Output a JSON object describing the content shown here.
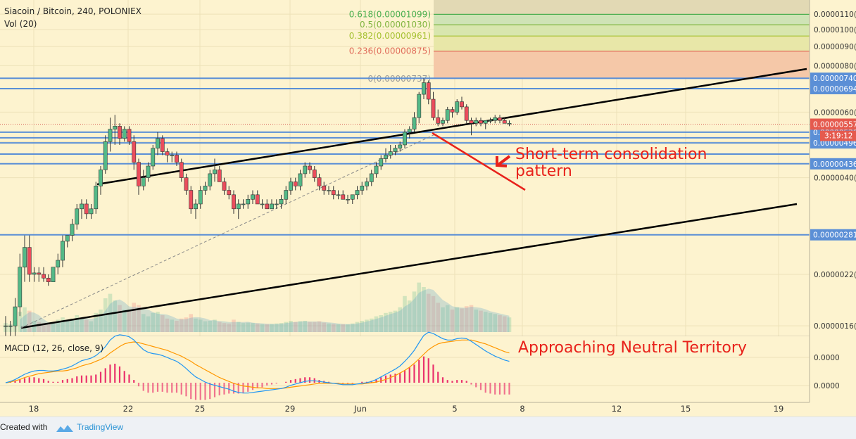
{
  "header": {
    "symbol": "Siacoin / Bitcoin, 240, POLONIEX",
    "volume_label": "Vol (20)",
    "macd_label": "MACD (12, 26, close, 9)"
  },
  "annotations": {
    "consolidation_line1": "Short-term consolidation",
    "consolidation_line2": "pattern",
    "macd_note": "Approaching Neutral Territory"
  },
  "footer": {
    "created_with": "Created with",
    "brand": "TradingView"
  },
  "colors": {
    "background": "#fdf3cf",
    "up_candle": "#53b987",
    "down_candle": "#eb4d5c",
    "support_line": "#5b8fd6",
    "trend_line": "#000000",
    "consolidation": "#e8211a",
    "macd_line": "#2196f3",
    "signal_line": "#ff9800",
    "histogram": "#e91e63",
    "price_label": "#e55a4e"
  },
  "chart_data": {
    "type": "candlestick",
    "pair": "Siacoin / Bitcoin",
    "interval_minutes": 240,
    "exchange": "POLONIEX",
    "x_ticks": [
      "18",
      "22",
      "25",
      "29",
      "Jun",
      "5",
      "8",
      "12",
      "15",
      "19"
    ],
    "y_tick_labels": [
      "0.0000110(",
      "0.0000100(",
      "0.0000090(",
      "0.0000080(",
      "0.0000060(",
      "0.0000050(",
      "0.0000040(",
      "0.0000022(",
      "0.0000016("
    ],
    "y_tick_values": [
      1.1e-05,
      1e-05,
      9e-06,
      8e-06,
      6e-06,
      5e-06,
      4e-06,
      2.2e-06,
      1.6e-06
    ],
    "y_scale": "log",
    "ylim": [
      1.5e-06,
      1.18e-05
    ],
    "current_price": {
      "label": "0.00000557",
      "value": 5.57e-06,
      "countdown": "3:19:12"
    },
    "fibonacci_levels": [
      {
        "label": "0.618(0.00001099)",
        "value": 1.099e-05,
        "color": "#4caf50"
      },
      {
        "label": "0.5(0.00001030)",
        "value": 1.03e-05,
        "color": "#81b540"
      },
      {
        "label": "0.382(0.00000961)",
        "value": 9.61e-06,
        "color": "#a5c130"
      },
      {
        "label": "0.236(0.00000875)",
        "value": 8.75e-06,
        "color": "#e06c5a"
      },
      {
        "label": "0(0.00000737)",
        "value": 7.37e-06,
        "color": "#999999"
      }
    ],
    "support_resistance": [
      {
        "label": "0.00000740",
        "value": 7.4e-06
      },
      {
        "label": "0.00000694",
        "value": 6.94e-06
      },
      {
        "label": "0.00000530",
        "value": 5.3e-06
      },
      {
        "label": "0.00000496",
        "value": 4.96e-06
      },
      {
        "label": "0.00000436",
        "value": 4.36e-06
      },
      {
        "label": "0.00000281",
        "value": 2.81e-06
      }
    ],
    "unlabeled_levels": [
      5.12e-06,
      4.63e-06
    ],
    "candles": [
      [
        1.6e-06,
        1.7e-06,
        1.5e-06,
        1.6e-06,
        40
      ],
      [
        1.6e-06,
        1.65e-06,
        1.5e-06,
        1.6e-06,
        35
      ],
      [
        1.6e-06,
        1.9e-06,
        1.5e-06,
        1.8e-06,
        60
      ],
      [
        1.8e-06,
        2.5e-06,
        1.7e-06,
        2.3e-06,
        90
      ],
      [
        2.3e-06,
        2.8e-06,
        2.1e-06,
        2.6e-06,
        110
      ],
      [
        2.6e-06,
        2.8e-06,
        2.1e-06,
        2.2e-06,
        95
      ],
      [
        2.2e-06,
        2.3e-06,
        2.1e-06,
        2.22e-06,
        50
      ],
      [
        2.22e-06,
        2.3e-06,
        2.1e-06,
        2.2e-06,
        45
      ],
      [
        2.2e-06,
        2.3e-06,
        2.1e-06,
        2.15e-06,
        40
      ],
      [
        2.15e-06,
        2.2e-06,
        2.05e-06,
        2.1e-06,
        38
      ],
      [
        2.1e-06,
        2.3e-06,
        2.1e-06,
        2.3e-06,
        42
      ],
      [
        2.3e-06,
        2.5e-06,
        2.2e-06,
        2.4e-06,
        55
      ],
      [
        2.4e-06,
        2.8e-06,
        2.3e-06,
        2.7e-06,
        65
      ],
      [
        2.7e-06,
        2.8e-06,
        2.6e-06,
        2.8e-06,
        50
      ],
      [
        2.8e-06,
        3.1e-06,
        2.7e-06,
        3e-06,
        60
      ],
      [
        3e-06,
        3.4e-06,
        2.9e-06,
        3.3e-06,
        75
      ],
      [
        3.3e-06,
        3.5e-06,
        3.1e-06,
        3.4e-06,
        60
      ],
      [
        3.4e-06,
        3.5e-06,
        3.1e-06,
        3.2e-06,
        55
      ],
      [
        3.2e-06,
        3.4e-06,
        3.1e-06,
        3.3e-06,
        48
      ],
      [
        3.3e-06,
        3.9e-06,
        3.2e-06,
        3.8e-06,
        85
      ],
      [
        3.8e-06,
        4.3e-06,
        3.6e-06,
        4.2e-06,
        100
      ],
      [
        4.2e-06,
        5.2e-06,
        4.1e-06,
        5e-06,
        150
      ],
      [
        5e-06,
        5.8e-06,
        4.7e-06,
        5.4e-06,
        170
      ],
      [
        5.4e-06,
        5.9e-06,
        4.9e-06,
        5.5e-06,
        140
      ],
      [
        5.5e-06,
        5.6e-06,
        4.9e-06,
        5.1e-06,
        120
      ],
      [
        5.1e-06,
        5.5e-06,
        5e-06,
        5.4e-06,
        100
      ],
      [
        5.4e-06,
        5.5e-06,
        4.9e-06,
        5e-06,
        95
      ],
      [
        5e-06,
        5.2e-06,
        4.2e-06,
        4.4e-06,
        130
      ],
      [
        4.4e-06,
        4.5e-06,
        3.6e-06,
        3.8e-06,
        120
      ],
      [
        3.8e-06,
        4.2e-06,
        3.7e-06,
        4e-06,
        80
      ],
      [
        4e-06,
        4.4e-06,
        3.9e-06,
        4.3e-06,
        70
      ],
      [
        4.3e-06,
        4.9e-06,
        4.2e-06,
        4.8e-06,
        85
      ],
      [
        4.8e-06,
        5.3e-06,
        4.6e-06,
        5.1e-06,
        90
      ],
      [
        5.1e-06,
        5.2e-06,
        4.6e-06,
        4.7e-06,
        75
      ],
      [
        4.7e-06,
        4.8e-06,
        4.4e-06,
        4.6e-06,
        60
      ],
      [
        4.6e-06,
        4.7e-06,
        4.4e-06,
        4.6e-06,
        55
      ],
      [
        4.6e-06,
        4.7e-06,
        4.3e-06,
        4.4e-06,
        50
      ],
      [
        4.4e-06,
        4.5e-06,
        3.9e-06,
        4e-06,
        60
      ],
      [
        4e-06,
        4.1e-06,
        3.6e-06,
        3.7e-06,
        65
      ],
      [
        3.7e-06,
        3.8e-06,
        3.2e-06,
        3.3e-06,
        80
      ],
      [
        3.3e-06,
        3.5e-06,
        3.1e-06,
        3.4e-06,
        60
      ],
      [
        3.4e-06,
        3.8e-06,
        3.3e-06,
        3.7e-06,
        55
      ],
      [
        3.7e-06,
        3.9e-06,
        3.6e-06,
        3.8e-06,
        48
      ],
      [
        3.8e-06,
        4.2e-06,
        3.7e-06,
        4.1e-06,
        50
      ],
      [
        4.1e-06,
        4.5e-06,
        3.9e-06,
        4.2e-06,
        55
      ],
      [
        4.2e-06,
        4.3e-06,
        3.9e-06,
        3.9e-06,
        45
      ],
      [
        3.9e-06,
        4e-06,
        3.6e-06,
        3.7e-06,
        40
      ],
      [
        3.7e-06,
        3.8e-06,
        3.5e-06,
        3.6e-06,
        38
      ],
      [
        3.6e-06,
        3.7e-06,
        3.2e-06,
        3.3e-06,
        55
      ],
      [
        3.3e-06,
        3.5e-06,
        3.1e-06,
        3.4e-06,
        45
      ],
      [
        3.4e-06,
        3.5e-06,
        3.3e-06,
        3.4e-06,
        40
      ],
      [
        3.4e-06,
        3.6e-06,
        3.3e-06,
        3.5e-06,
        42
      ],
      [
        3.5e-06,
        3.7e-06,
        3.4e-06,
        3.6e-06,
        40
      ],
      [
        3.6e-06,
        3.7e-06,
        3.4e-06,
        3.4e-06,
        38
      ],
      [
        3.4e-06,
        3.5e-06,
        3.3e-06,
        3.4e-06,
        35
      ],
      [
        3.4e-06,
        3.5e-06,
        3.3e-06,
        3.3e-06,
        35
      ],
      [
        3.3e-06,
        3.5e-06,
        3.3e-06,
        3.4e-06,
        36
      ],
      [
        3.4e-06,
        3.5e-06,
        3.3e-06,
        3.4e-06,
        38
      ],
      [
        3.4e-06,
        3.6e-06,
        3.3e-06,
        3.5e-06,
        40
      ],
      [
        3.5e-06,
        3.8e-06,
        3.4e-06,
        3.7e-06,
        45
      ],
      [
        3.7e-06,
        4e-06,
        3.6e-06,
        3.9e-06,
        50
      ],
      [
        3.9e-06,
        4e-06,
        3.7e-06,
        3.8e-06,
        45
      ],
      [
        3.8e-06,
        4.2e-06,
        3.7e-06,
        4.1e-06,
        48
      ],
      [
        4.1e-06,
        4.4e-06,
        4e-06,
        4.3e-06,
        50
      ],
      [
        4.3e-06,
        4.4e-06,
        4.1e-06,
        4.2e-06,
        45
      ],
      [
        4.2e-06,
        4.3e-06,
        3.9e-06,
        4e-06,
        45
      ],
      [
        4e-06,
        4.1e-06,
        3.7e-06,
        3.8e-06,
        48
      ],
      [
        3.8e-06,
        3.9e-06,
        3.6e-06,
        3.7e-06,
        42
      ],
      [
        3.7e-06,
        3.8e-06,
        3.6e-06,
        3.7e-06,
        38
      ],
      [
        3.7e-06,
        3.8e-06,
        3.5e-06,
        3.6e-06,
        36
      ],
      [
        3.6e-06,
        3.7e-06,
        3.5e-06,
        3.6e-06,
        35
      ],
      [
        3.6e-06,
        3.7e-06,
        3.5e-06,
        3.5e-06,
        35
      ],
      [
        3.5e-06,
        3.6e-06,
        3.4e-06,
        3.5e-06,
        34
      ],
      [
        3.5e-06,
        3.6e-06,
        3.4e-06,
        3.6e-06,
        38
      ],
      [
        3.6e-06,
        3.8e-06,
        3.5e-06,
        3.7e-06,
        45
      ],
      [
        3.7e-06,
        3.9e-06,
        3.6e-06,
        3.8e-06,
        50
      ],
      [
        3.8e-06,
        4e-06,
        3.7e-06,
        3.9e-06,
        55
      ],
      [
        3.9e-06,
        4.2e-06,
        3.8e-06,
        4.1e-06,
        60
      ],
      [
        4.1e-06,
        4.4e-06,
        4e-06,
        4.3e-06,
        70
      ],
      [
        4.3e-06,
        4.6e-06,
        4.2e-06,
        4.5e-06,
        75
      ],
      [
        4.5e-06,
        4.8e-06,
        4.4e-06,
        4.6e-06,
        85
      ],
      [
        4.6e-06,
        4.9e-06,
        4.5e-06,
        4.7e-06,
        90
      ],
      [
        4.7e-06,
        4.9e-06,
        4.6e-06,
        4.8e-06,
        95
      ],
      [
        4.8e-06,
        5e-06,
        4.7e-06,
        4.9e-06,
        110
      ],
      [
        4.9e-06,
        5.4e-06,
        4.8e-06,
        5.3e-06,
        160
      ],
      [
        5.3e-06,
        5.5e-06,
        5.1e-06,
        5.4e-06,
        140
      ],
      [
        5.4e-06,
        6e-06,
        5.3e-06,
        5.8e-06,
        180
      ],
      [
        5.8e-06,
        6.8e-06,
        5.6e-06,
        6.7e-06,
        220
      ],
      [
        6.7e-06,
        7.4e-06,
        6.5e-06,
        7.2e-06,
        200
      ],
      [
        7.2e-06,
        7.3e-06,
        6.3e-06,
        6.5e-06,
        170
      ],
      [
        6.5e-06,
        6.8e-06,
        5.7e-06,
        5.8e-06,
        160
      ],
      [
        5.8e-06,
        6.1e-06,
        5.5e-06,
        5.6e-06,
        130
      ],
      [
        5.6e-06,
        5.8e-06,
        5.5e-06,
        5.7e-06,
        110
      ],
      [
        5.7e-06,
        6.2e-06,
        5.6e-06,
        6.1e-06,
        120
      ],
      [
        6.1e-06,
        6.2e-06,
        5.8e-06,
        6e-06,
        100
      ],
      [
        6e-06,
        6.5e-06,
        5.9e-06,
        6.4e-06,
        110
      ],
      [
        6.4e-06,
        6.6e-06,
        6.1e-06,
        6.2e-06,
        105
      ],
      [
        6.2e-06,
        6.3e-06,
        5.6e-06,
        5.7e-06,
        115
      ],
      [
        5.7e-06,
        5.8e-06,
        5.2e-06,
        5.6e-06,
        120
      ],
      [
        5.6e-06,
        5.8e-06,
        5.5e-06,
        5.7e-06,
        100
      ],
      [
        5.7e-06,
        5.8e-06,
        5.5e-06,
        5.6e-06,
        95
      ],
      [
        5.6e-06,
        5.7e-06,
        5.4e-06,
        5.7e-06,
        90
      ],
      [
        5.7e-06,
        5.8e-06,
        5.6e-06,
        5.7e-06,
        85
      ],
      [
        5.7e-06,
        5.9e-06,
        5.6e-06,
        5.8e-06,
        80
      ],
      [
        5.8e-06,
        5.9e-06,
        5.6e-06,
        5.7e-06,
        75
      ],
      [
        5.7e-06,
        5.8e-06,
        5.6e-06,
        5.6e-06,
        70
      ],
      [
        5.6e-06,
        5.7e-06,
        5.5e-06,
        5.6e-06,
        65
      ]
    ],
    "macd": {
      "params": "12, 26, close, 9",
      "macd_line": [
        0,
        0.2,
        0.5,
        0.9,
        1.3,
        1.6,
        1.8,
        1.9,
        1.9,
        1.8,
        1.8,
        1.9,
        2.1,
        2.3,
        2.6,
        3,
        3.4,
        3.6,
        3.8,
        4.2,
        4.8,
        5.6,
        6.6,
        7.2,
        7.4,
        7.3,
        7.1,
        6.6,
        5.8,
        5.1,
        4.7,
        4.5,
        4.4,
        4.2,
        3.9,
        3.6,
        3.3,
        2.8,
        2.2,
        1.5,
        0.9,
        0.5,
        0.1,
        -0.2,
        -0.4,
        -0.6,
        -0.8,
        -1,
        -1.3,
        -1.5,
        -1.6,
        -1.6,
        -1.5,
        -1.4,
        -1.3,
        -1.2,
        -1.1,
        -1,
        -0.9,
        -0.7,
        -0.4,
        -0.2,
        0,
        0.2,
        0.3,
        0.3,
        0.2,
        0.1,
        0,
        -0.1,
        -0.2,
        -0.3,
        -0.3,
        -0.3,
        -0.2,
        -0.1,
        0,
        0.2,
        0.5,
        0.9,
        1.3,
        1.7,
        2.1,
        2.6,
        3.3,
        4.1,
        5,
        6.2,
        7.3,
        7.8,
        7.6,
        7.2,
        6.8,
        6.6,
        6.6,
        6.8,
        6.9,
        6.8,
        6.4,
        5.9,
        5.4,
        4.9,
        4.5,
        4.1,
        3.8,
        3.5,
        3.3
      ],
      "signal_line": [
        0,
        0.1,
        0.3,
        0.5,
        0.8,
        1,
        1.2,
        1.4,
        1.5,
        1.6,
        1.7,
        1.8,
        1.8,
        1.9,
        2.1,
        2.3,
        2.6,
        2.8,
        3,
        3.3,
        3.6,
        4,
        4.6,
        5.1,
        5.6,
        6,
        6.2,
        6.3,
        6.2,
        6,
        5.8,
        5.6,
        5.4,
        5.2,
        5,
        4.7,
        4.4,
        4.1,
        3.7,
        3.3,
        2.8,
        2.4,
        2,
        1.6,
        1.2,
        0.8,
        0.5,
        0.2,
        -0.1,
        -0.3,
        -0.5,
        -0.6,
        -0.7,
        -0.8,
        -0.8,
        -0.9,
        -0.9,
        -0.9,
        -0.9,
        -0.8,
        -0.7,
        -0.6,
        -0.5,
        -0.4,
        -0.3,
        -0.2,
        -0.1,
        -0.1,
        -0.1,
        -0.1,
        -0.1,
        -0.2,
        -0.2,
        -0.2,
        -0.2,
        -0.2,
        -0.1,
        0,
        0.1,
        0.3,
        0.5,
        0.8,
        1.1,
        1.5,
        1.9,
        2.4,
        3,
        3.7,
        4.4,
        5.1,
        5.6,
        6,
        6.2,
        6.3,
        6.4,
        6.5,
        6.6,
        6.6,
        6.6,
        6.4,
        6.2,
        6,
        5.7,
        5.4,
        5.1,
        4.8,
        4.6
      ]
    }
  }
}
